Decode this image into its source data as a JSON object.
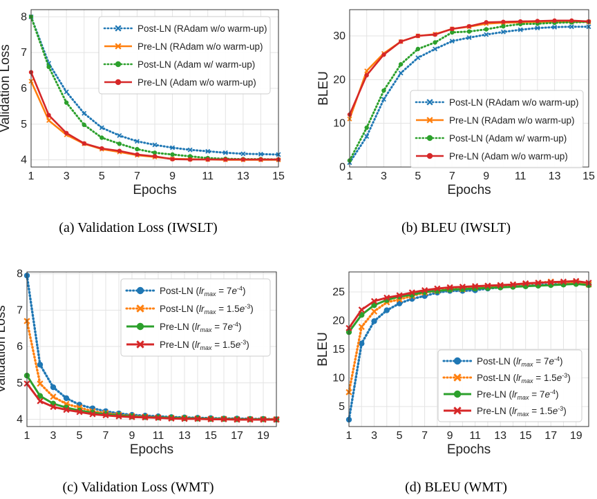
{
  "panels": [
    {
      "caption": "(a)  Validation Loss (IWSLT)",
      "chart_data": {
        "type": "line",
        "title": "",
        "xlabel": "Epochs",
        "ylabel": "Validation Loss",
        "xlim": [
          1,
          15
        ],
        "ylim": [
          3.8,
          8.2
        ],
        "xticks": [
          1,
          3,
          5,
          7,
          9,
          11,
          13,
          15
        ],
        "yticks": [
          4,
          5,
          6,
          7,
          8
        ],
        "grid": true,
        "legend_position": "upper right",
        "x": [
          1,
          2,
          3,
          4,
          5,
          6,
          7,
          8,
          9,
          10,
          11,
          12,
          13,
          14,
          15
        ],
        "series": [
          {
            "name": "Post-LN (RAdam w/o warm-up)",
            "color": "#1f77b4",
            "dash": "dotted",
            "marker": "x",
            "values": [
              8.0,
              6.7,
              5.9,
              5.3,
              4.9,
              4.68,
              4.52,
              4.42,
              4.34,
              4.28,
              4.24,
              4.2,
              4.17,
              4.16,
              4.15
            ]
          },
          {
            "name": "Pre-LN (RAdam w/o warm-up)",
            "color": "#ff7f0e",
            "dash": "solid",
            "marker": "x",
            "values": [
              6.2,
              5.1,
              4.7,
              4.45,
              4.3,
              4.22,
              4.13,
              4.08,
              4.03,
              4.02,
              4.01,
              4.0,
              4.0,
              4.0,
              4.0
            ]
          },
          {
            "name": "Post-LN (Adam w/ warm-up)",
            "color": "#2ca02c",
            "dash": "dotted",
            "marker": "o",
            "values": [
              8.0,
              6.6,
              5.6,
              4.98,
              4.62,
              4.45,
              4.3,
              4.2,
              4.15,
              4.1,
              4.05,
              4.03,
              4.02,
              4.02,
              4.01
            ]
          },
          {
            "name": "Pre-LN (Adam w/o warm-up)",
            "color": "#d62728",
            "dash": "solid",
            "marker": "o",
            "values": [
              6.45,
              5.25,
              4.75,
              4.46,
              4.32,
              4.25,
              4.15,
              4.1,
              4.02,
              4.01,
              4.01,
              4.01,
              4.01,
              4.01,
              4.01
            ]
          }
        ]
      }
    },
    {
      "caption": "(b)  BLEU (IWSLT)",
      "chart_data": {
        "type": "line",
        "title": "",
        "xlabel": "Epochs",
        "ylabel": "BLEU",
        "xlim": [
          1,
          15
        ],
        "ylim": [
          0,
          36
        ],
        "xticks": [
          1,
          3,
          5,
          7,
          9,
          11,
          13,
          15
        ],
        "yticks": [
          0,
          10,
          20,
          30
        ],
        "grid": true,
        "legend_position": "lower right",
        "x": [
          1,
          2,
          3,
          4,
          5,
          6,
          7,
          8,
          9,
          10,
          11,
          12,
          13,
          14,
          15
        ],
        "series": [
          {
            "name": "Post-LN (RAdam w/o warm-up)",
            "color": "#1f77b4",
            "dash": "dotted",
            "marker": "x",
            "values": [
              1.0,
              7.0,
              15.5,
              21.5,
              25.0,
              27.0,
              28.8,
              29.6,
              30.3,
              30.9,
              31.4,
              31.8,
              32.0,
              32.1,
              32.1
            ]
          },
          {
            "name": "Pre-LN (RAdam w/o warm-up)",
            "color": "#ff7f0e",
            "dash": "solid",
            "marker": "x",
            "values": [
              11.0,
              22.0,
              26.0,
              28.7,
              30.0,
              30.4,
              31.6,
              32.1,
              32.8,
              33.0,
              33.1,
              33.2,
              33.2,
              33.2,
              33.2
            ]
          },
          {
            "name": "Post-LN (Adam w/ warm-up)",
            "color": "#2ca02c",
            "dash": "dotted",
            "marker": "o",
            "values": [
              1.5,
              9.0,
              17.5,
              23.5,
              27.0,
              28.5,
              30.8,
              31.0,
              31.5,
              32.2,
              32.7,
              32.8,
              33.0,
              33.1,
              33.2
            ]
          },
          {
            "name": "Pre-LN (Adam w/o warm-up)",
            "color": "#d62728",
            "dash": "solid",
            "marker": "o",
            "values": [
              12.0,
              21.0,
              25.7,
              28.7,
              30.0,
              30.3,
              31.6,
              32.2,
              33.1,
              33.2,
              33.3,
              33.4,
              33.5,
              33.5,
              33.3
            ]
          }
        ]
      }
    },
    {
      "caption": "(c)  Validation Loss (WMT)",
      "chart_data": {
        "type": "line",
        "title": "",
        "xlabel": "Epochs",
        "ylabel": "Validation Loss",
        "xlim": [
          1,
          20
        ],
        "ylim": [
          3.8,
          8.05
        ],
        "xticks": [
          1,
          3,
          5,
          7,
          9,
          11,
          13,
          15,
          17,
          19
        ],
        "yticks": [
          4,
          5,
          6,
          7,
          8
        ],
        "grid": true,
        "legend_position": "upper right",
        "x": [
          1,
          2,
          3,
          4,
          5,
          6,
          7,
          8,
          9,
          10,
          11,
          12,
          13,
          14,
          15,
          16,
          17,
          18,
          19,
          20
        ],
        "series": [
          {
            "name": "Post-LN (lr_max = 7e^-4)",
            "color": "#1f77b4",
            "dash": "dotted",
            "marker": "o",
            "values": [
              7.95,
              5.5,
              4.88,
              4.58,
              4.4,
              4.3,
              4.22,
              4.16,
              4.12,
              4.1,
              4.08,
              4.06,
              4.05,
              4.04,
              4.03,
              4.02,
              4.02,
              4.01,
              4.01,
              4.0
            ]
          },
          {
            "name": "Post-LN (lr_max = 1.5e^-3)",
            "color": "#ff7f0e",
            "dash": "dotted",
            "marker": "x",
            "values": [
              6.7,
              4.98,
              4.62,
              4.42,
              4.32,
              4.22,
              4.17,
              4.12,
              4.09,
              4.07,
              4.05,
              4.04,
              4.03,
              4.02,
              4.01,
              4.01,
              4.0,
              4.0,
              4.0,
              4.0
            ]
          },
          {
            "name": "Pre-LN (lr_max = 7e^-4)",
            "color": "#2ca02c",
            "dash": "solid",
            "marker": "o",
            "values": [
              5.2,
              4.64,
              4.43,
              4.32,
              4.24,
              4.18,
              4.14,
              4.11,
              4.08,
              4.06,
              4.05,
              4.04,
              4.03,
              4.02,
              4.01,
              4.01,
              4.0,
              4.0,
              4.0,
              3.99
            ]
          },
          {
            "name": "Pre-LN (lr_max = 1.5e^-3)",
            "color": "#d62728",
            "dash": "solid",
            "marker": "x",
            "values": [
              4.98,
              4.5,
              4.34,
              4.26,
              4.2,
              4.14,
              4.11,
              4.08,
              4.06,
              4.05,
              4.04,
              4.02,
              4.01,
              4.01,
              4.0,
              4.0,
              3.99,
              3.99,
              3.99,
              3.99
            ]
          }
        ]
      }
    },
    {
      "caption": "(d)  BLEU (WMT)",
      "chart_data": {
        "type": "line",
        "title": "",
        "xlabel": "Epochs",
        "ylabel": "BLEU",
        "xlim": [
          1,
          20
        ],
        "ylim": [
          1.5,
          28.5
        ],
        "xticks": [
          1,
          3,
          5,
          7,
          9,
          11,
          13,
          15,
          17,
          19
        ],
        "yticks": [
          5,
          10,
          15,
          20,
          25
        ],
        "grid": true,
        "legend_position": "lower right",
        "x": [
          1,
          2,
          3,
          4,
          5,
          6,
          7,
          8,
          9,
          10,
          11,
          12,
          13,
          14,
          15,
          16,
          17,
          18,
          19,
          20
        ],
        "series": [
          {
            "name": "Post-LN (lr_max = 7e^-4)",
            "color": "#1f77b4",
            "dash": "dotted",
            "marker": "o",
            "values": [
              2.7,
              16.0,
              19.9,
              21.8,
              23.0,
              23.8,
              24.3,
              24.9,
              25.2,
              25.2,
              25.3,
              25.6,
              25.8,
              26.0,
              26.1,
              26.2,
              26.3,
              26.4,
              26.5,
              26.3
            ]
          },
          {
            "name": "Post-LN (lr_max = 1.5e^-3)",
            "color": "#ff7f0e",
            "dash": "dotted",
            "marker": "x",
            "values": [
              7.5,
              18.9,
              21.6,
              23.2,
              23.7,
              24.3,
              24.9,
              25.2,
              25.5,
              25.5,
              25.8,
              26.0,
              26.1,
              26.3,
              26.4,
              26.6,
              26.8,
              26.6,
              26.8,
              26.3
            ]
          },
          {
            "name": "Pre-LN (lr_max = 7e^-4)",
            "color": "#2ca02c",
            "dash": "solid",
            "marker": "o",
            "values": [
              18.0,
              21.0,
              22.7,
              23.6,
              24.2,
              24.5,
              25.0,
              25.2,
              25.4,
              25.5,
              25.6,
              25.7,
              25.8,
              25.9,
              26.0,
              26.1,
              26.2,
              26.3,
              26.4,
              26.2
            ]
          },
          {
            "name": "Pre-LN (lr_max = 1.5e^-3)",
            "color": "#d62728",
            "dash": "solid",
            "marker": "x",
            "values": [
              18.7,
              21.9,
              23.4,
              24.0,
              24.4,
              24.9,
              25.3,
              25.6,
              25.8,
              25.9,
              26.0,
              26.1,
              26.2,
              26.3,
              26.5,
              26.6,
              26.7,
              26.8,
              26.9,
              26.6
            ]
          }
        ]
      }
    }
  ]
}
